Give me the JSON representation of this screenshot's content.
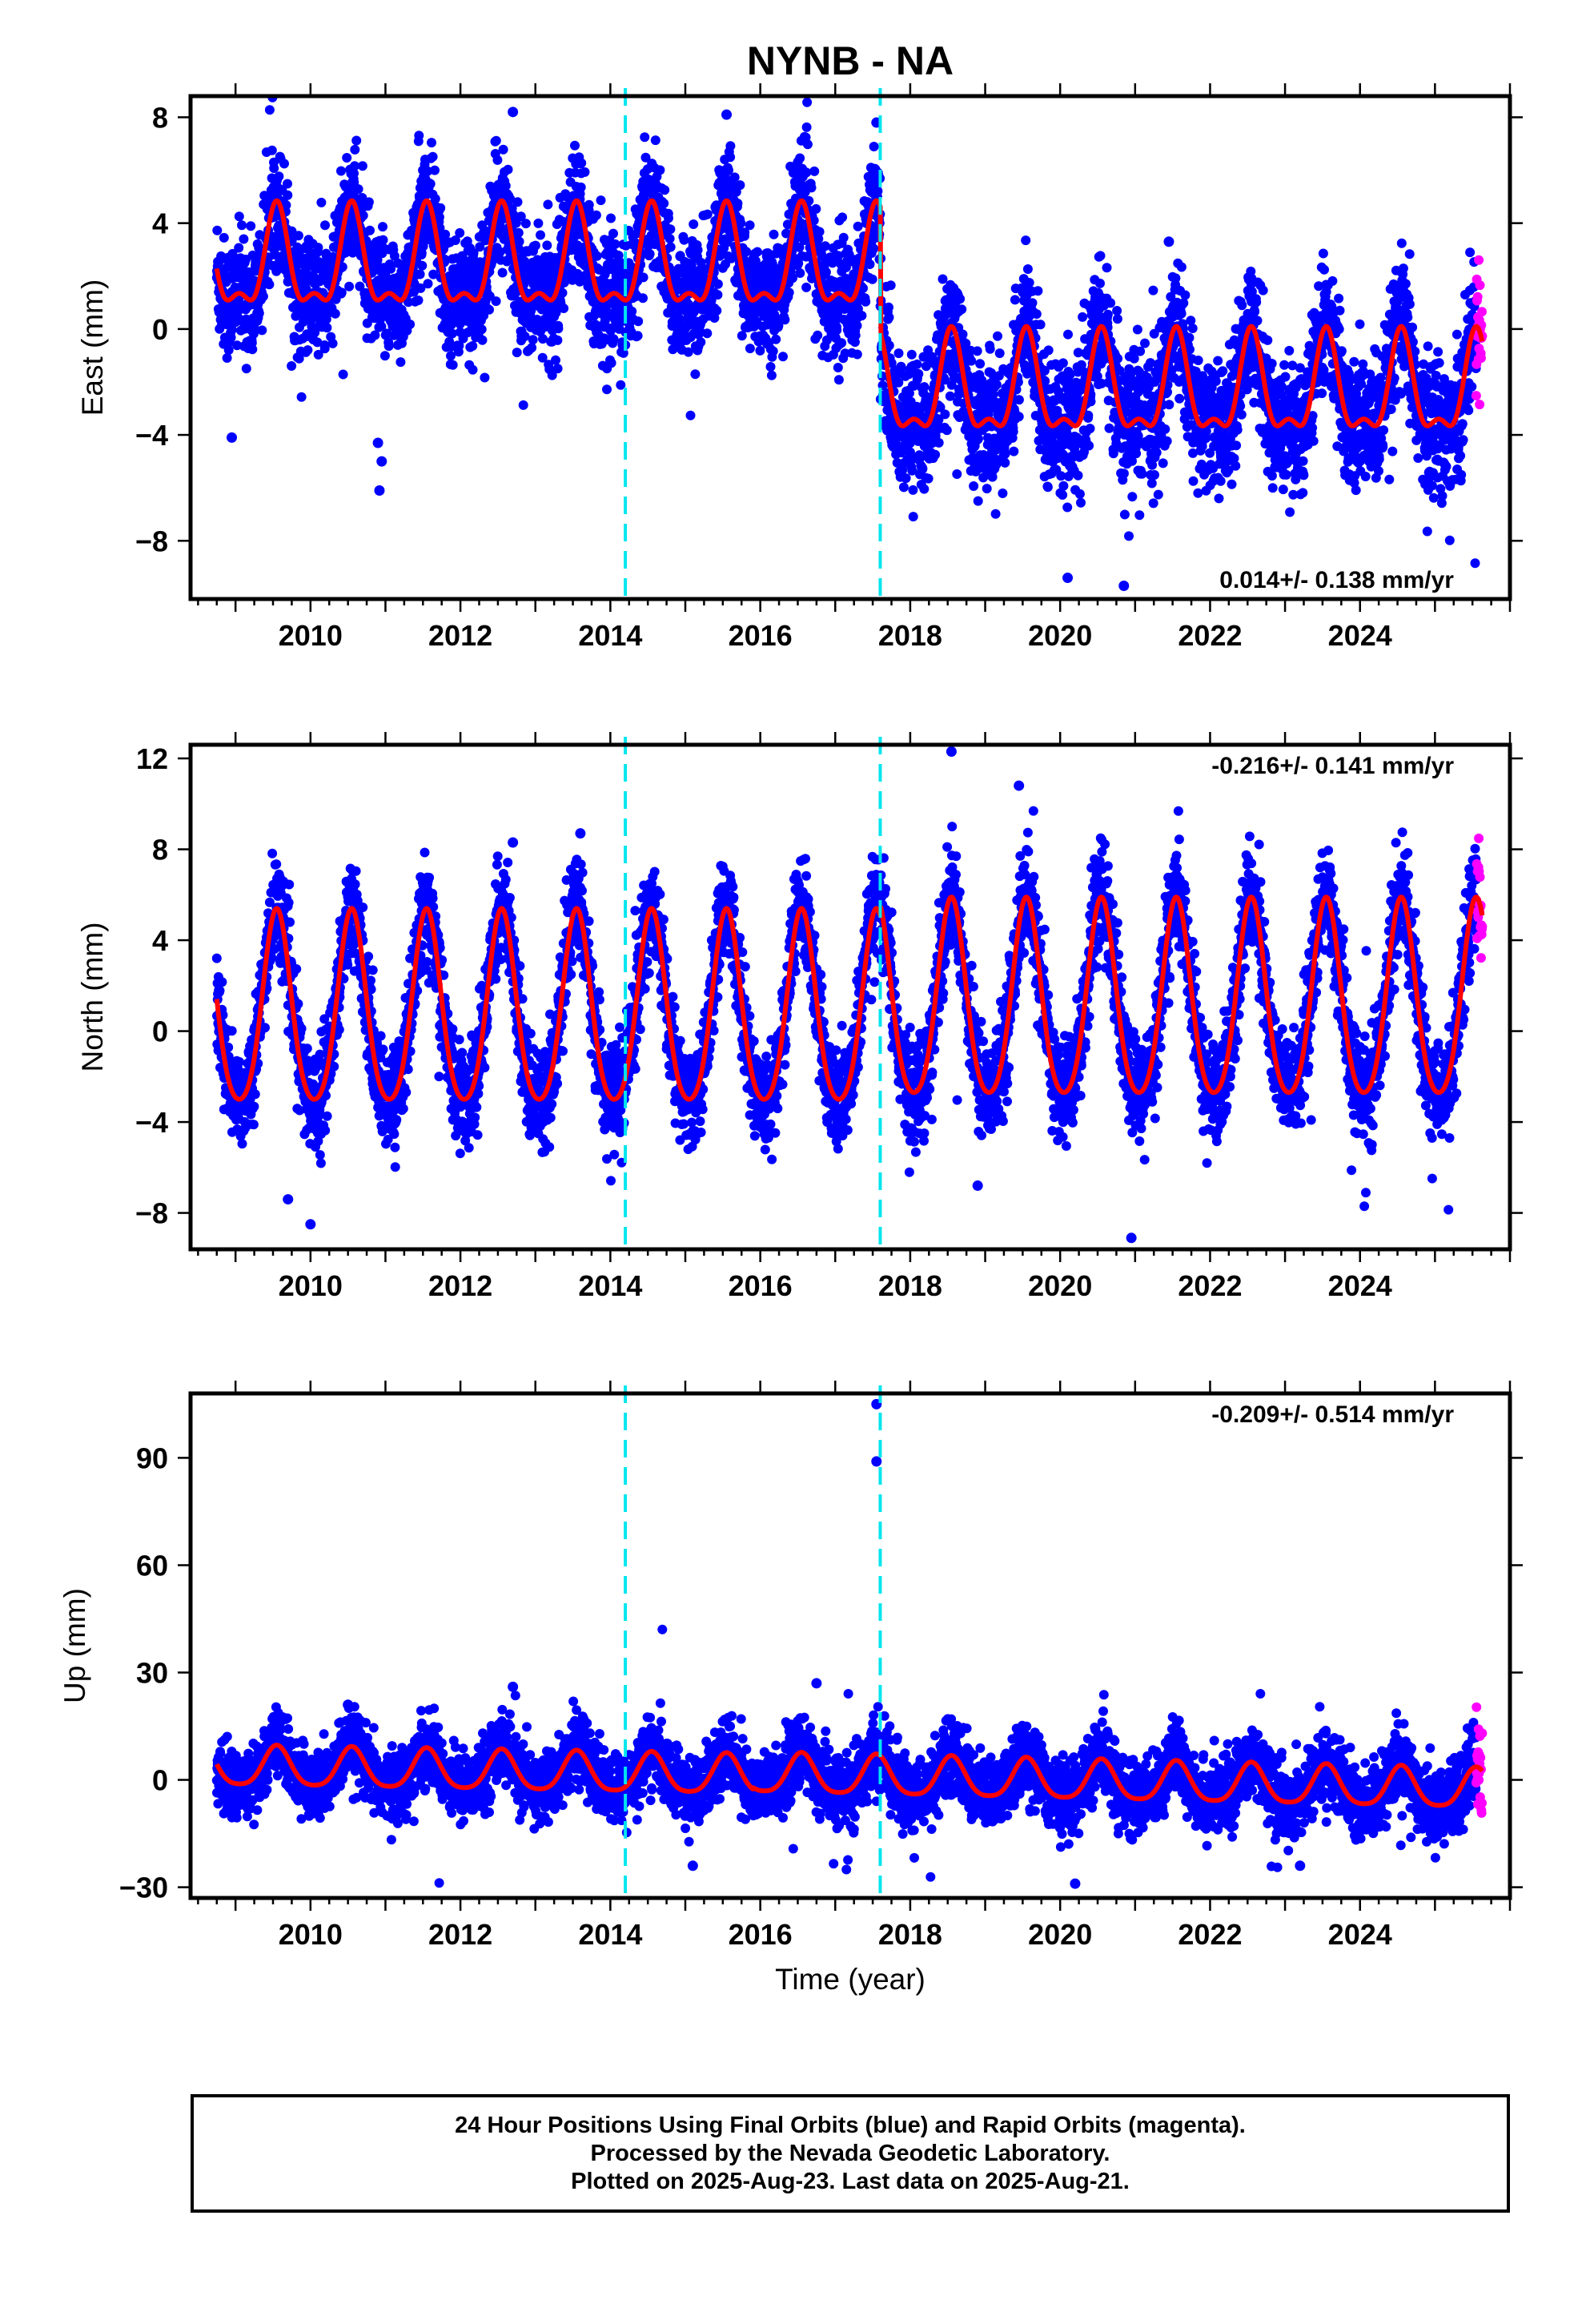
{
  "title": "NYNB - NA",
  "xlabel": "Time (year)",
  "colors": {
    "final_orbits": "#0000ff",
    "rapid_orbits": "#ff00ff",
    "model": "#ff0000",
    "event_lines": "#00e5ee",
    "frame": "#000000"
  },
  "caption": {
    "line1": "24 Hour Positions Using Final Orbits (blue) and Rapid Orbits (magenta).",
    "line2": "Processed by the Nevada Geodetic Laboratory.",
    "line3": "Plotted on 2025-Aug-23. Last data on 2025-Aug-21."
  },
  "chart_data": [
    {
      "type": "scatter",
      "panel": "east",
      "ylabel": "East (mm)",
      "xlim": [
        2008.4,
        2026.0
      ],
      "ylim": [
        -10.2,
        8.8
      ],
      "yticks": [
        -8,
        -4,
        0,
        4,
        8
      ],
      "xticks": [
        2010,
        2012,
        2014,
        2016,
        2018,
        2020,
        2022,
        2024
      ],
      "rate_label": "0.014+/- 0.138 mm/yr",
      "rate_position": "bottom-right",
      "event_lines_x": [
        2014.2,
        2017.6
      ],
      "series": [
        {
          "kind": "final_orbits_points",
          "x_range": [
            2008.75,
            2025.55
          ],
          "approx_count": 5900
        },
        {
          "kind": "rapid_orbits_points",
          "x_range": [
            2025.55,
            2025.63
          ]
        },
        {
          "kind": "model_fit"
        }
      ],
      "segments": [
        {
          "x_range": [
            2008.75,
            2017.6
          ],
          "offset": 2.35,
          "annual_amplitude": 1.75,
          "semiannual_amplitude": 0.75,
          "noise_sd": 1.1
        },
        {
          "x_range": [
            2017.6,
            2025.63
          ],
          "offset": -2.4,
          "annual_amplitude": 1.75,
          "semiannual_amplitude": 0.75,
          "noise_sd": 1.2
        }
      ],
      "outliers": [
        [
          2010.9,
          -4.3
        ],
        [
          2010.95,
          -5.0
        ],
        [
          2010.92,
          -6.1
        ],
        [
          2012.7,
          8.2
        ],
        [
          2015.55,
          8.1
        ],
        [
          2017.55,
          7.8
        ],
        [
          2020.1,
          -9.4
        ],
        [
          2020.85,
          -9.7
        ],
        [
          2021.45,
          3.3
        ],
        [
          2008.95,
          -4.1
        ]
      ]
    },
    {
      "type": "scatter",
      "panel": "north",
      "ylabel": "North (mm)",
      "xlim": [
        2008.4,
        2026.0
      ],
      "ylim": [
        -9.6,
        12.6
      ],
      "yticks": [
        -8,
        -4,
        0,
        4,
        8,
        12
      ],
      "xticks": [
        2010,
        2012,
        2014,
        2016,
        2018,
        2020,
        2022,
        2024
      ],
      "rate_label": "-0.216+/- 0.141 mm/yr",
      "rate_position": "top-right",
      "event_lines_x": [
        2014.2,
        2017.6
      ],
      "series": [
        {
          "kind": "final_orbits_points",
          "x_range": [
            2008.75,
            2025.55
          ],
          "approx_count": 5900
        },
        {
          "kind": "rapid_orbits_points",
          "x_range": [
            2025.55,
            2025.63
          ]
        },
        {
          "kind": "model_fit"
        }
      ],
      "segments": [
        {
          "x_range": [
            2008.75,
            2017.6
          ],
          "offset": 0.6,
          "annual_amplitude": 4.2,
          "semiannual_amplitude": 0.6,
          "noise_sd": 1.05
        },
        {
          "x_range": [
            2017.6,
            2025.63
          ],
          "offset": 1.0,
          "annual_amplitude": 4.3,
          "semiannual_amplitude": 0.6,
          "noise_sd": 1.1
        }
      ],
      "outliers": [
        [
          2009.7,
          -7.4
        ],
        [
          2010.0,
          -8.5
        ],
        [
          2018.55,
          12.3
        ],
        [
          2020.95,
          -9.1
        ],
        [
          2019.45,
          10.8
        ],
        [
          2013.6,
          8.7
        ],
        [
          2018.9,
          -6.8
        ],
        [
          2012.7,
          8.3
        ]
      ]
    },
    {
      "type": "scatter",
      "panel": "up",
      "ylabel": "Up (mm)",
      "xlim": [
        2008.4,
        2026.0
      ],
      "ylim": [
        -33,
        108
      ],
      "yticks": [
        -30,
        0,
        30,
        60,
        90
      ],
      "xticks": [
        2010,
        2012,
        2014,
        2016,
        2018,
        2020,
        2022,
        2024
      ],
      "rate_label": "-0.209+/- 0.514 mm/yr",
      "rate_position": "top-right",
      "event_lines_x": [
        2014.2,
        2017.6
      ],
      "series": [
        {
          "kind": "final_orbits_points",
          "x_range": [
            2008.75,
            2025.55
          ],
          "approx_count": 5900
        },
        {
          "kind": "rapid_orbits_points",
          "x_range": [
            2025.55,
            2025.63
          ]
        },
        {
          "kind": "model_fit"
        }
      ],
      "segments": [
        {
          "x_range": [
            2008.75,
            2015.9
          ],
          "offset": 3.5,
          "slope": -0.35,
          "annual_amplitude": 5.5,
          "semiannual_amplitude": 1.0,
          "noise_sd": 4.5
        },
        {
          "x_range": [
            2015.9,
            2025.63
          ],
          "offset": 1.5,
          "slope": -0.45,
          "annual_amplitude": 5.5,
          "semiannual_amplitude": 1.0,
          "noise_sd": 4.8
        }
      ],
      "outliers": [
        [
          2017.55,
          105
        ],
        [
          2017.55,
          89
        ],
        [
          2010.5,
          21
        ],
        [
          2012.7,
          26
        ],
        [
          2016.75,
          27
        ],
        [
          2020.2,
          -29
        ],
        [
          2023.2,
          -24
        ],
        [
          2015.1,
          -24
        ]
      ]
    }
  ]
}
